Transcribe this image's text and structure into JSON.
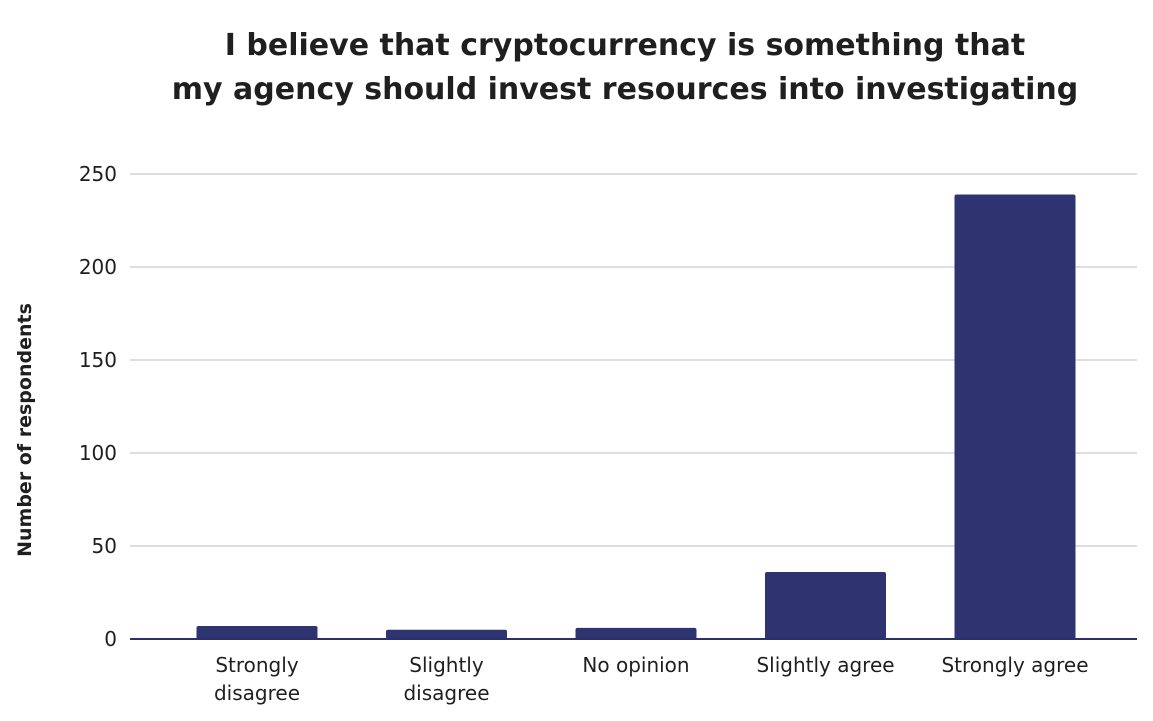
{
  "chart_data": {
    "type": "bar",
    "title_lines": [
      "I believe that cryptocurrency is something that",
      "my agency should invest resources into investigating"
    ],
    "xlabel": "",
    "ylabel": "Number of respondents",
    "categories": [
      [
        "Strongly",
        "disagree"
      ],
      [
        "Slightly",
        "disagree"
      ],
      [
        "No opinion"
      ],
      [
        "Slightly agree"
      ],
      [
        "Strongly agree"
      ]
    ],
    "values": [
      7,
      5,
      6,
      36,
      239
    ],
    "ylim": [
      0,
      250
    ],
    "yticks": [
      0,
      50,
      100,
      150,
      200,
      250
    ],
    "grid": true,
    "bar_color": "#2e3470",
    "axis_color": "#2b2f6b",
    "grid_color": "#d4d4d8"
  }
}
